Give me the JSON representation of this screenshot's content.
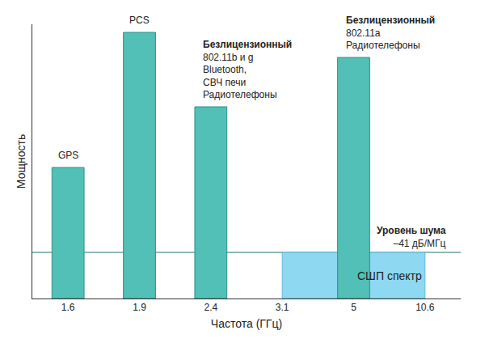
{
  "chart_data": {
    "type": "bar",
    "x_label": "Частота (ГГц)",
    "y_label": "Мощность",
    "categories": [
      "1.6",
      "1.9",
      "2.4",
      "3.1",
      "5",
      "10.6"
    ],
    "values": [
      162,
      329,
      237,
      null,
      298,
      null
    ],
    "color": "#52c0b6",
    "ylim": [
      0,
      339
    ],
    "tick_labels": "x",
    "grid": false,
    "annotations": [
      {
        "category": "1.6",
        "text": [
          "GPS"
        ]
      },
      {
        "category": "1.9",
        "text": [
          "PCS"
        ]
      },
      {
        "category": "2.4",
        "heading": "Безлицензионный",
        "text": [
          "802.11b и g",
          "Bluetooth,",
          "СВЧ печи",
          "Радиотелефоны"
        ]
      },
      {
        "category": "5",
        "heading": "Безлицензионный",
        "text": [
          "802.11a",
          "Радиотелефоны"
        ]
      }
    ],
    "noise_level": {
      "y": 57,
      "heading": "Уровень шума",
      "text": [
        "–41 дБ/МГц"
      ],
      "color": "#6a9fa3"
    },
    "uwb_band": {
      "from": "3.1",
      "to": "10.6",
      "text": "СШП спектр",
      "color": "#8ed8f2"
    }
  }
}
